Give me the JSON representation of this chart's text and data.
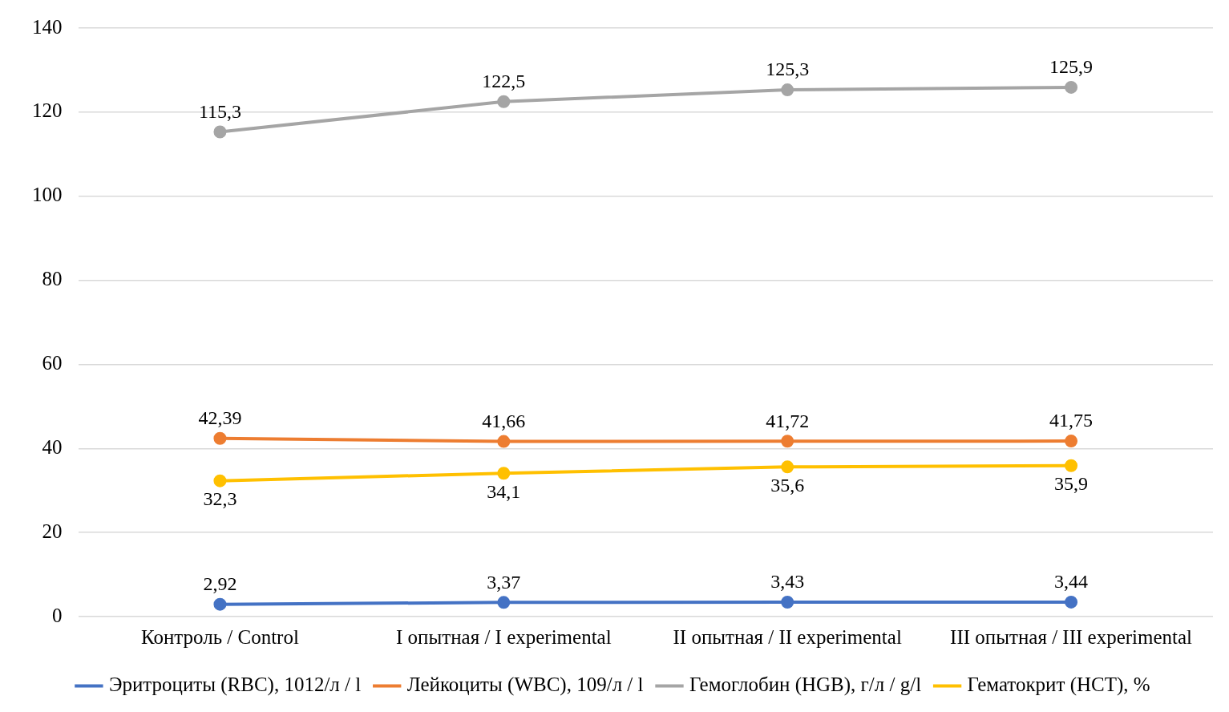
{
  "chart_data": {
    "type": "line",
    "categories": [
      "Контроль / Control",
      "I опытная / I experimental",
      "II опытная / II experimental",
      "III опытная / III experimental"
    ],
    "series": [
      {
        "name": "Эритроциты (RBC), 1012/л / l",
        "color": "#4472c4",
        "values": [
          2.92,
          3.37,
          3.43,
          3.44
        ],
        "value_labels": [
          "2,92",
          "3,37",
          "3,43",
          "3,44"
        ]
      },
      {
        "name": "Лейкоциты (WBC), 109/л / l",
        "color": "#ed7d31",
        "values": [
          42.39,
          41.66,
          41.72,
          41.75
        ],
        "value_labels": [
          "42,39",
          "41,66",
          "41,72",
          "41,75"
        ]
      },
      {
        "name": "Гемоглобин (HGB), г/л / g/l",
        "color": "#a5a5a5",
        "values": [
          115.3,
          122.5,
          125.3,
          125.9
        ],
        "value_labels": [
          "115,3",
          "122,5",
          "125,3",
          "125,9"
        ]
      },
      {
        "name": "Гематокрит (HCT), %",
        "color": "#ffc000",
        "values": [
          32.3,
          34.1,
          35.6,
          35.9
        ],
        "value_labels": [
          "32,3",
          "34,1",
          "35,6",
          "35,9"
        ]
      }
    ],
    "ylim": [
      0,
      140
    ],
    "yticks": [
      0,
      20,
      40,
      60,
      80,
      100,
      120,
      140
    ],
    "grid": "y",
    "legend": "bottom",
    "marker": "circle",
    "line_style": "solid"
  }
}
